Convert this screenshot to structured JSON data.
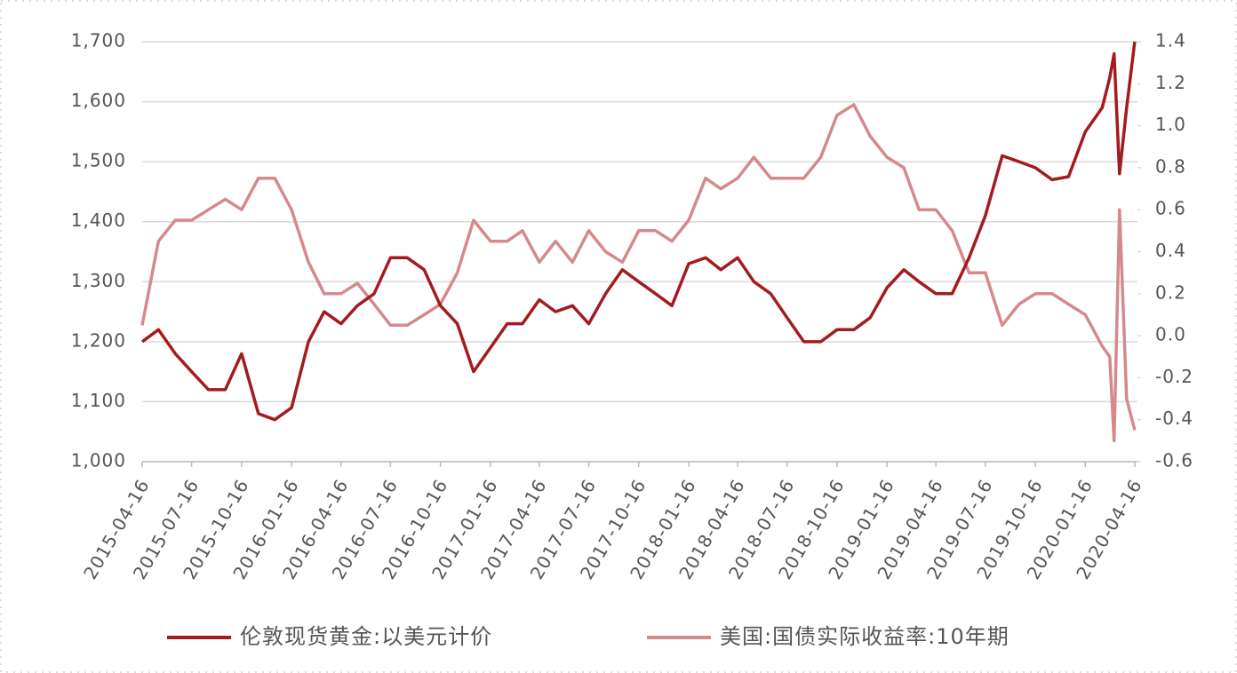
{
  "chart_data": {
    "type": "line",
    "x": [
      "2015-04-16",
      "2015-05-16",
      "2015-06-16",
      "2015-07-16",
      "2015-08-16",
      "2015-09-16",
      "2015-10-16",
      "2015-11-16",
      "2015-12-16",
      "2016-01-16",
      "2016-02-16",
      "2016-03-16",
      "2016-04-16",
      "2016-05-16",
      "2016-06-16",
      "2016-07-16",
      "2016-08-16",
      "2016-09-16",
      "2016-10-16",
      "2016-11-16",
      "2016-12-16",
      "2017-01-16",
      "2017-02-16",
      "2017-03-16",
      "2017-04-16",
      "2017-05-16",
      "2017-06-16",
      "2017-07-16",
      "2017-08-16",
      "2017-09-16",
      "2017-10-16",
      "2017-11-16",
      "2017-12-16",
      "2018-01-16",
      "2018-02-16",
      "2018-03-16",
      "2018-04-16",
      "2018-05-16",
      "2018-06-16",
      "2018-07-16",
      "2018-08-16",
      "2018-09-16",
      "2018-10-16",
      "2018-11-16",
      "2018-12-16",
      "2019-01-16",
      "2019-02-16",
      "2019-03-16",
      "2019-04-16",
      "2019-05-16",
      "2019-06-16",
      "2019-07-16",
      "2019-08-16",
      "2019-09-16",
      "2019-10-16",
      "2019-11-16",
      "2019-12-16",
      "2020-01-16",
      "2020-02-16",
      "2020-03-01",
      "2020-03-09",
      "2020-03-19",
      "2020-04-01",
      "2020-04-16"
    ],
    "series": [
      {
        "name": "伦敦现货黄金:以美元计价",
        "color": "#a31b1f",
        "values": [
          1200,
          1220,
          1180,
          1150,
          1120,
          1120,
          1180,
          1080,
          1070,
          1090,
          1200,
          1250,
          1230,
          1260,
          1280,
          1340,
          1340,
          1320,
          1260,
          1230,
          1150,
          1190,
          1230,
          1230,
          1270,
          1250,
          1260,
          1230,
          1280,
          1320,
          1300,
          1280,
          1260,
          1330,
          1340,
          1320,
          1340,
          1300,
          1280,
          1240,
          1200,
          1200,
          1220,
          1220,
          1240,
          1290,
          1320,
          1300,
          1280,
          1280,
          1340,
          1410,
          1510,
          1500,
          1490,
          1470,
          1475,
          1550,
          1590,
          1640,
          1680,
          1480,
          1590,
          1700
        ]
      },
      {
        "name": "美国:国债实际收益率:10年期",
        "color": "#d48a8c",
        "axis": "y2",
        "values": [
          0.05,
          0.45,
          0.55,
          0.55,
          0.6,
          0.65,
          0.6,
          0.75,
          0.75,
          0.6,
          0.35,
          0.2,
          0.2,
          0.25,
          0.15,
          0.05,
          0.05,
          0.1,
          0.15,
          0.3,
          0.55,
          0.45,
          0.45,
          0.5,
          0.35,
          0.45,
          0.35,
          0.5,
          0.4,
          0.35,
          0.5,
          0.5,
          0.45,
          0.55,
          0.75,
          0.7,
          0.75,
          0.85,
          0.75,
          0.75,
          0.75,
          0.85,
          1.05,
          1.1,
          0.95,
          0.85,
          0.8,
          0.6,
          0.6,
          0.5,
          0.3,
          0.3,
          0.05,
          0.15,
          0.2,
          0.2,
          0.15,
          0.1,
          -0.05,
          -0.1,
          -0.5,
          0.6,
          -0.3,
          -0.45
        ]
      }
    ],
    "xlim": [
      "2015-04-16",
      "2020-04-21"
    ],
    "xticks": [
      "2015-04-16",
      "2015-07-16",
      "2015-10-16",
      "2016-01-16",
      "2016-04-16",
      "2016-07-16",
      "2016-10-16",
      "2017-01-16",
      "2017-04-16",
      "2017-07-16",
      "2017-10-16",
      "2018-01-16",
      "2018-04-16",
      "2018-07-16",
      "2018-10-16",
      "2019-01-16",
      "2019-04-16",
      "2019-07-16",
      "2019-10-16",
      "2020-01-16",
      "2020-04-16"
    ],
    "ylim": [
      1000,
      1700
    ],
    "yticks": [
      {
        "value": 1000,
        "label": "1,000"
      },
      {
        "value": 1100,
        "label": "1,100"
      },
      {
        "value": 1200,
        "label": "1,200"
      },
      {
        "value": 1300,
        "label": "1,300"
      },
      {
        "value": 1400,
        "label": "1,400"
      },
      {
        "value": 1500,
        "label": "1,500"
      },
      {
        "value": 1600,
        "label": "1,600"
      },
      {
        "value": 1700,
        "label": "1,700"
      }
    ],
    "y2lim": [
      -0.6,
      1.4
    ],
    "y2ticks": [
      -0.6,
      -0.4,
      -0.2,
      {
        "value": 0,
        "label": "0.0"
      },
      0.2,
      0.4,
      0.6,
      0.8,
      {
        "value": 1,
        "label": "1.0"
      },
      1.2,
      1.4
    ],
    "grid": true,
    "legend": "bottom"
  }
}
